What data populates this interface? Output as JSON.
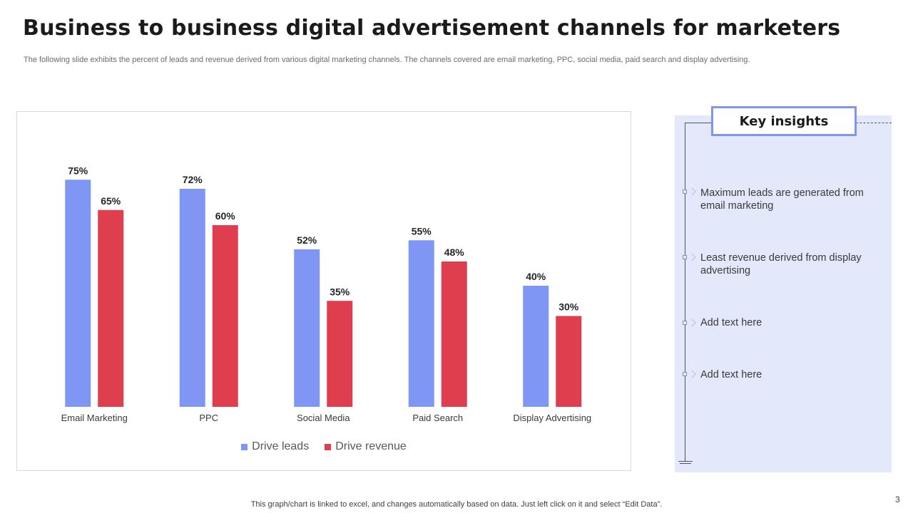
{
  "title": "Business to business digital advertisement channels for marketers",
  "subtitle": "The following slide exhibits the percent of leads and revenue derived from various digital marketing channels. The channels covered are email marketing, PPC, social media, paid search and display advertising.",
  "insights": {
    "heading": "Key insights",
    "items": [
      "Maximum leads are generated from email marketing",
      "Least revenue derived from display advertising",
      "Add text here",
      "Add text here"
    ]
  },
  "footer": "This graph/chart is linked to excel,  and changes automatically based on data. Just left click on it and select “Edit Data”.",
  "page_number": "3",
  "chart_data": {
    "type": "bar",
    "title": "",
    "xlabel": "",
    "ylabel": "",
    "ylim": [
      0,
      80
    ],
    "grid": false,
    "legend_position": "bottom",
    "value_format": "percent",
    "categories": [
      "Email Marketing",
      "PPC",
      "Social Media",
      "Paid Search",
      "Display Advertising"
    ],
    "series": [
      {
        "name": "Drive leads",
        "color": "#7f96f5",
        "values": [
          75,
          72,
          52,
          55,
          40
        ]
      },
      {
        "name": "Drive revenue",
        "color": "#de3e4d",
        "values": [
          65,
          60,
          35,
          48,
          30
        ]
      }
    ]
  }
}
